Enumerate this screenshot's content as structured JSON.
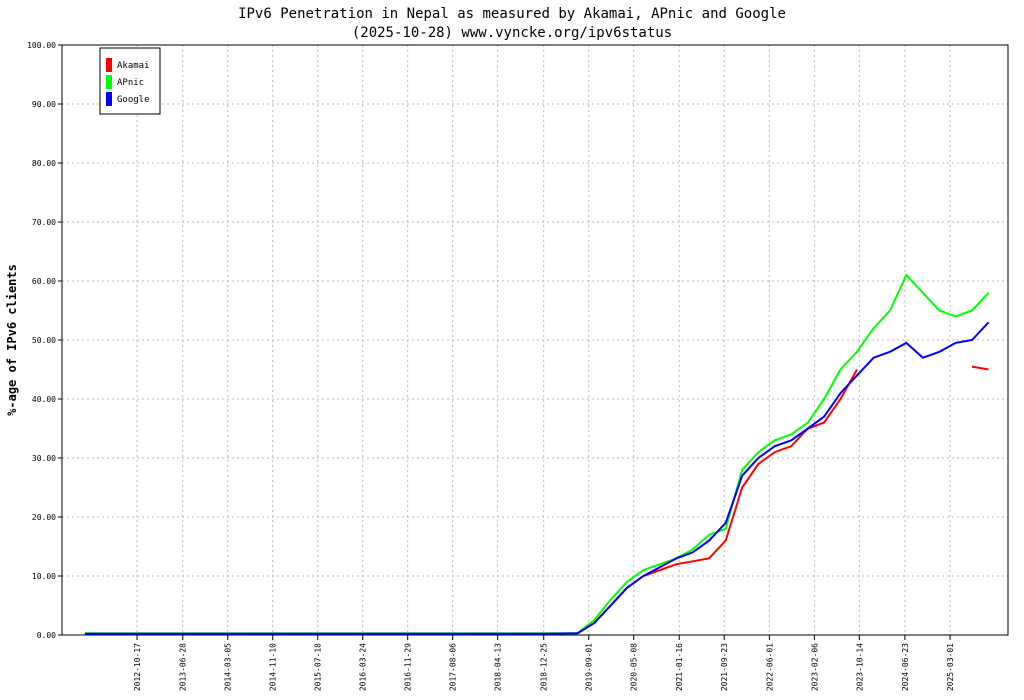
{
  "chart_data": {
    "type": "line",
    "title": "IPv6 Penetration in Nepal as measured by Akamai, APnic and Google",
    "subtitle": "(2025-10-28) www.vyncke.org/ipv6status",
    "y_label": "%-age of IPv6 clients",
    "x": [
      "2012-01-01",
      "2012-07-01",
      "2013-01-01",
      "2013-07-01",
      "2014-01-01",
      "2014-07-01",
      "2015-01-01",
      "2015-07-01",
      "2016-01-01",
      "2016-07-01",
      "2017-01-01",
      "2017-07-01",
      "2018-01-01",
      "2018-07-01",
      "2019-01-01",
      "2019-07-01",
      "2019-10-01",
      "2020-01-01",
      "2020-04-01",
      "2020-07-01",
      "2020-10-01",
      "2021-01-01",
      "2021-04-01",
      "2021-07-01",
      "2021-10-01",
      "2022-01-01",
      "2022-04-01",
      "2022-07-01",
      "2022-10-01",
      "2023-01-01",
      "2023-04-01",
      "2023-07-01",
      "2023-10-01",
      "2024-01-01",
      "2024-04-01",
      "2024-07-01",
      "2024-10-01",
      "2025-01-01",
      "2025-04-01",
      "2025-07-01",
      "2025-10-01"
    ],
    "series": [
      {
        "name": "Akamai",
        "color": "#ff0000",
        "values": [
          null,
          null,
          null,
          null,
          null,
          null,
          null,
          null,
          null,
          null,
          null,
          null,
          null,
          null,
          null,
          null,
          2,
          5,
          8,
          10,
          11,
          12,
          12.5,
          13,
          16,
          25,
          29,
          31,
          32,
          35,
          36,
          40,
          45,
          null,
          null,
          null,
          null,
          null,
          null,
          45.5,
          45
        ]
      },
      {
        "name": "APnic",
        "color": "#00ff00",
        "values": [
          0.3,
          0.3,
          0.3,
          0.3,
          0.3,
          0.3,
          0.3,
          0.3,
          0.3,
          0.3,
          0.3,
          0.3,
          0.3,
          0.3,
          0.3,
          0.3,
          2.5,
          6,
          9,
          11,
          12,
          13,
          14.5,
          17,
          18,
          28,
          31,
          33,
          34,
          36,
          40,
          45,
          48,
          52,
          55,
          61,
          58,
          55,
          54,
          55,
          58
        ]
      },
      {
        "name": "Google",
        "color": "#0000ff",
        "values": [
          0.2,
          0.2,
          0.2,
          0.2,
          0.2,
          0.2,
          0.2,
          0.2,
          0.2,
          0.2,
          0.2,
          0.2,
          0.2,
          0.2,
          0.2,
          0.3,
          2,
          5,
          8,
          10,
          11.5,
          13,
          14,
          16,
          19,
          27,
          30,
          32,
          33,
          35,
          37,
          41,
          44,
          47,
          48,
          49.5,
          47,
          48,
          49.5,
          50,
          53
        ]
      }
    ],
    "xlim": [
      "2011-08-27",
      "2026-01-17"
    ],
    "xticks": [
      "2012-10-17",
      "2013-06-28",
      "2014-03-05",
      "2014-11-10",
      "2015-07-18",
      "2016-03-24",
      "2016-11-29",
      "2017-08-06",
      "2018-04-13",
      "2018-12-25",
      "2019-09-01",
      "2020-05-08",
      "2021-01-16",
      "2021-09-23",
      "2022-06-01",
      "2023-02-06",
      "2023-10-14",
      "2024-06-23",
      "2025-03-01"
    ],
    "ylim": [
      0,
      100
    ],
    "yticks": [
      {
        "value": 0,
        "label": "0.00"
      },
      {
        "value": 10,
        "label": "10.00"
      },
      {
        "value": 20,
        "label": "20.00"
      },
      {
        "value": 30,
        "label": "30.00"
      },
      {
        "value": 40,
        "label": "40.00"
      },
      {
        "value": 50,
        "label": "50.00"
      },
      {
        "value": 60,
        "label": "60.00"
      },
      {
        "value": 70,
        "label": "70.00"
      },
      {
        "value": 80,
        "label": "80.00"
      },
      {
        "value": 90,
        "label": "90.00"
      },
      {
        "value": 100,
        "label": "100.00"
      }
    ],
    "grid": true,
    "legend": "upper left"
  }
}
